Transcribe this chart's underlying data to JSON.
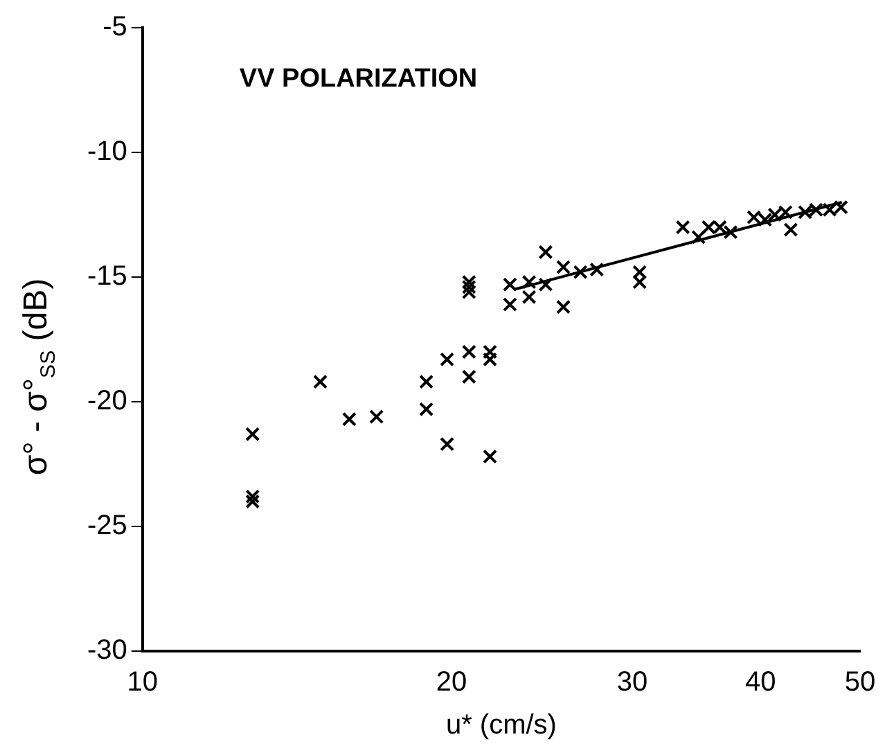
{
  "chart_data": {
    "type": "scatter",
    "xlabel": "u* (cm/s)",
    "ylabel": "σ° - σ°$_{SS}$ (dB)",
    "annotations": [
      "VV POLARIZATION"
    ],
    "log": "x",
    "grid": false,
    "legend": false,
    "marker": "cross",
    "xlim": [
      10,
      50
    ],
    "xticks": [
      10,
      20,
      30,
      40,
      50
    ],
    "ylim": [
      -30,
      -5
    ],
    "yticks": [
      -30,
      -25,
      -20,
      -15,
      -10,
      -5
    ],
    "series": [
      {
        "color": "#000000",
        "x": [
          12.8,
          12.8,
          12.8,
          14.9,
          15.9,
          16.9,
          18.9,
          18.9,
          19.8,
          19.8,
          20.8,
          20.8,
          20.8,
          20.8,
          20.8,
          21.8,
          21.8,
          21.8,
          22.8,
          22.8,
          23.8,
          23.8,
          24.7,
          24.7,
          25.7,
          25.7,
          26.7,
          27.7,
          30.5,
          30.5,
          33.6,
          34.8,
          35.6,
          36.5,
          37.4,
          39.4,
          40.4,
          41.3,
          42.3,
          42.8,
          44.2,
          45.3,
          46.7,
          47.9
        ],
        "values": [
          -21.3,
          -23.8,
          -24.0,
          -19.2,
          -20.7,
          -20.6,
          -19.2,
          -20.3,
          -18.3,
          -21.7,
          -18.0,
          -19.0,
          -15.2,
          -15.4,
          -15.6,
          -18.0,
          -18.3,
          -22.2,
          -15.3,
          -16.1,
          -15.2,
          -15.8,
          -15.3,
          -14.0,
          -14.6,
          -16.2,
          -14.8,
          -14.7,
          -14.8,
          -15.2,
          -13.0,
          -13.4,
          -13.0,
          -13.0,
          -13.2,
          -12.6,
          -12.7,
          -12.5,
          -12.4,
          -13.1,
          -12.4,
          -12.3,
          -12.3,
          -12.2
        ]
      },
      {
        "type": "line",
        "color": "#000000",
        "marker": "none",
        "line_style": "solid",
        "x": [
          23,
          48
        ],
        "values": [
          -15.5,
          -12.0
        ]
      }
    ]
  }
}
